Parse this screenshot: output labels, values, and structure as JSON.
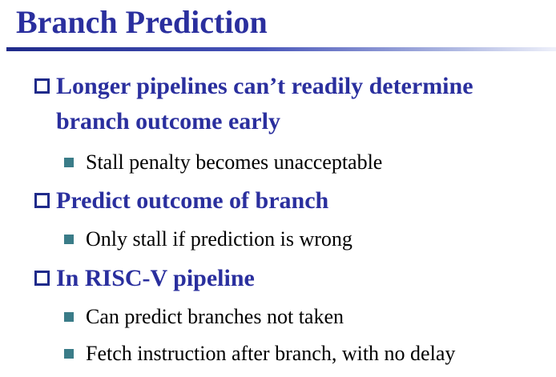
{
  "slide": {
    "title": "Branch Prediction",
    "bullets": [
      {
        "lines": [
          "Longer pipelines can’t readily determine",
          "branch outcome early"
        ],
        "sub": [
          "Stall penalty becomes unacceptable"
        ]
      },
      {
        "lines": [
          "Predict outcome of branch"
        ],
        "sub": [
          "Only stall if prediction is wrong"
        ]
      },
      {
        "lines": [
          "In RISC-V pipeline"
        ],
        "sub": [
          "Can predict branches not taken",
          "Fetch instruction after branch, with no delay"
        ]
      }
    ]
  },
  "colors": {
    "title": "#2a2f9e",
    "level1_text": "#2a2f9e",
    "level1_marker": "#1f2a8a",
    "level2_marker": "#3a7c88",
    "level2_text": "#000000"
  }
}
